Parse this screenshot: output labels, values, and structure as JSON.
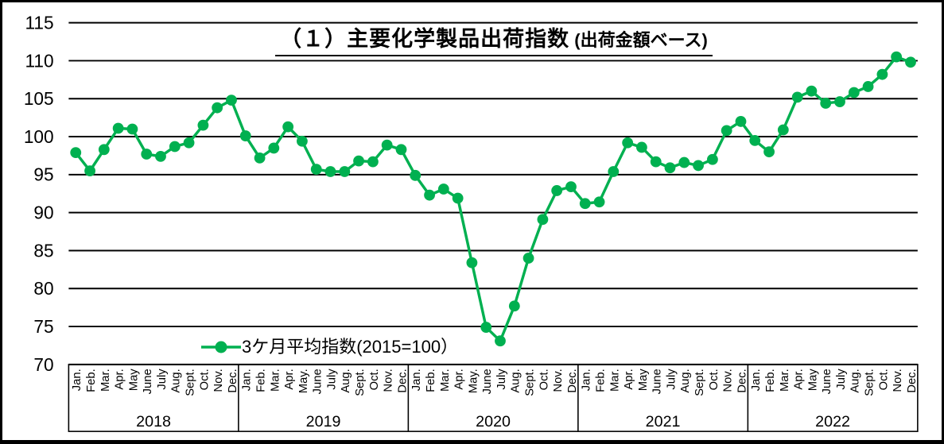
{
  "title": {
    "main": "（１）主要化学製品出荷指数",
    "sub": " (出荷金額ベース)"
  },
  "legend": {
    "label": "3ケ月平均指数(2015=100）"
  },
  "chart_data": {
    "type": "line",
    "title": "（１）主要化学製品出荷指数 (出荷金額ベース)",
    "xlabel": "",
    "ylabel": "",
    "ylim": [
      70,
      115
    ],
    "yticks": [
      70,
      75,
      80,
      85,
      90,
      95,
      100,
      105,
      110,
      115
    ],
    "grid": "horizontal-black-lines",
    "legend_position": "inside-bottom-left",
    "years": [
      "2018",
      "2019",
      "2020",
      "2021",
      "2022"
    ],
    "month_labels_by_year": [
      [
        "Jan.",
        "Feb.",
        "Mar.",
        "Apr.",
        "May",
        "June",
        "July",
        "Aug.",
        "Sept.",
        "Oct.",
        "Nov.",
        "Dec."
      ],
      [
        "Jan.",
        "Feb.",
        "Mar.",
        "Apr.",
        "May.",
        "June",
        "July",
        "Aug.",
        "Sept.",
        "Oct.",
        "Nov.",
        "Dec."
      ],
      [
        "Jan.",
        "Feb.",
        "Mar.",
        "Apr.",
        "May.",
        "June",
        "July",
        "Aug.",
        "Sept.",
        "Oct.",
        "Nov.",
        "Dec."
      ],
      [
        "Jan.",
        "Feb.",
        "Mar.",
        "Apr.",
        "May",
        "June",
        "July",
        "Aug.",
        "Sept.",
        "Oct.",
        "Nov.",
        "Dec."
      ],
      [
        "Jan.",
        "Feb.",
        "Mar.",
        "Apr.",
        "May",
        "June",
        "July",
        "Aug.",
        "Sept.",
        "Oct.",
        "Nov.",
        "Dec."
      ]
    ],
    "series": [
      {
        "name": "3ケ月平均指数(2015=100）",
        "color": "#00B050",
        "marker": "circle",
        "values_by_year": {
          "2018": [
            97.9,
            95.5,
            98.3,
            101.1,
            101.0,
            97.7,
            97.4,
            98.7,
            99.2,
            101.5,
            103.8,
            104.8
          ],
          "2019": [
            100.1,
            97.2,
            98.5,
            101.3,
            99.4,
            95.7,
            95.4,
            95.4,
            96.8,
            96.7,
            98.9,
            98.3
          ],
          "2020": [
            94.9,
            92.3,
            93.1,
            91.9,
            83.4,
            74.9,
            73.1,
            77.7,
            84.0,
            89.1,
            92.9,
            93.4
          ],
          "2021": [
            91.2,
            91.4,
            95.4,
            99.2,
            98.6,
            96.7,
            95.9,
            96.6,
            96.2,
            97.0,
            100.8,
            102.0
          ],
          "2022": [
            99.5,
            98.0,
            100.9,
            105.2,
            106.0,
            104.4,
            104.6,
            105.8,
            106.6,
            108.2,
            110.5,
            109.8
          ]
        }
      }
    ],
    "colors": {
      "series_green": "#00B050",
      "gridline": "#000000",
      "text": "#000000",
      "background": "#FFFFFF"
    }
  }
}
